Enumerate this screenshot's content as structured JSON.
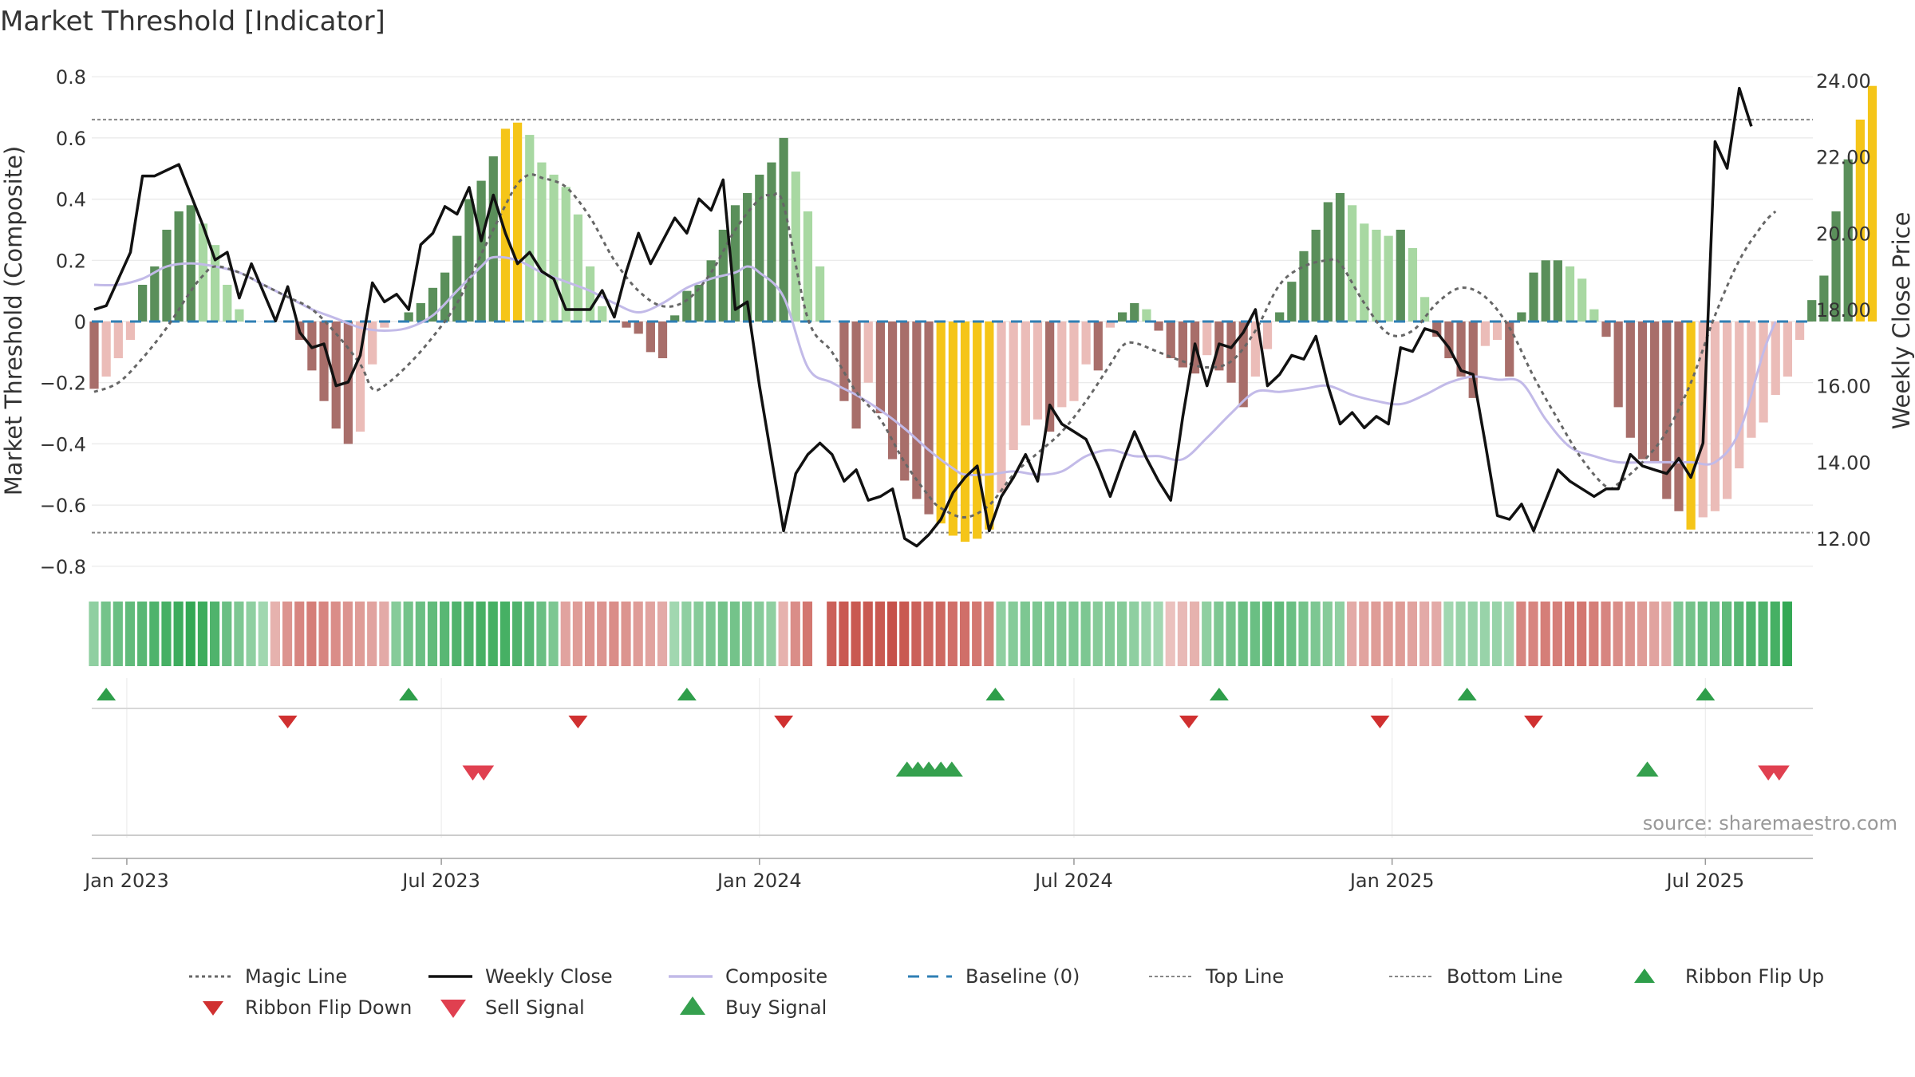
{
  "chart_data": {
    "type": "bar",
    "title": "Market Threshold [Indicator]",
    "ylabel": "Market Threshold (Composite)",
    "y2label": "Weekly Close Price",
    "ylim": [
      -0.85,
      0.85
    ],
    "y2lim": [
      11.25,
      24.25
    ],
    "y_ticks": [
      "0.8",
      "0.6",
      "0.4",
      "0.2",
      "0",
      "−0.2",
      "−0.4",
      "−0.6",
      "−0.8"
    ],
    "y_tick_values": [
      0.8,
      0.6,
      0.4,
      0.2,
      0,
      -0.2,
      -0.4,
      -0.6,
      -0.8
    ],
    "y2_ticks": [
      "24.00",
      "22.00",
      "20.00",
      "18.00",
      "16.00",
      "14.00",
      "12.00"
    ],
    "y2_tick_values": [
      24,
      22,
      20,
      18,
      16,
      14,
      12
    ],
    "x_ticks": [
      "Jan 2023",
      "Jul 2023",
      "Jan 2024",
      "Jul 2024",
      "Jan 2025",
      "Jul 2025"
    ],
    "x_tick_weeks": [
      2.7,
      28.7,
      55,
      81,
      107.3,
      133.2
    ],
    "top_line": 0.66,
    "bottom_line": -0.69,
    "composite_anchors": [
      [
        0,
        0.12
      ],
      [
        2,
        0.12
      ],
      [
        4,
        0.14
      ],
      [
        6,
        0.18
      ],
      [
        8,
        0.19
      ],
      [
        10,
        0.18
      ],
      [
        12,
        0.16
      ],
      [
        14,
        0.12
      ],
      [
        16,
        0.08
      ],
      [
        18,
        0.04
      ],
      [
        20,
        0.01
      ],
      [
        22,
        -0.02
      ],
      [
        24,
        -0.03
      ],
      [
        26,
        -0.02
      ],
      [
        28,
        0.02
      ],
      [
        30,
        0.1
      ],
      [
        32,
        0.18
      ],
      [
        33,
        0.21
      ],
      [
        35,
        0.2
      ],
      [
        37,
        0.16
      ],
      [
        39,
        0.13
      ],
      [
        41,
        0.1
      ],
      [
        43,
        0.06
      ],
      [
        45,
        0.03
      ],
      [
        47,
        0.06
      ],
      [
        49,
        0.11
      ],
      [
        51,
        0.14
      ],
      [
        53,
        0.16
      ],
      [
        54,
        0.18
      ],
      [
        55,
        0.16
      ],
      [
        57,
        0.08
      ],
      [
        59,
        -0.15
      ],
      [
        61,
        -0.2
      ],
      [
        63,
        -0.24
      ],
      [
        65,
        -0.29
      ],
      [
        67,
        -0.35
      ],
      [
        69,
        -0.42
      ],
      [
        71,
        -0.48
      ],
      [
        72,
        -0.5
      ],
      [
        74,
        -0.5
      ],
      [
        76,
        -0.49
      ],
      [
        78,
        -0.5
      ],
      [
        80,
        -0.49
      ],
      [
        82,
        -0.44
      ],
      [
        84,
        -0.42
      ],
      [
        86,
        -0.44
      ],
      [
        88,
        -0.44
      ],
      [
        90,
        -0.45
      ],
      [
        92,
        -0.38
      ],
      [
        94,
        -0.3
      ],
      [
        96,
        -0.23
      ],
      [
        98,
        -0.23
      ],
      [
        100,
        -0.22
      ],
      [
        102,
        -0.21
      ],
      [
        104,
        -0.24
      ],
      [
        106,
        -0.26
      ],
      [
        108,
        -0.27
      ],
      [
        110,
        -0.24
      ],
      [
        112,
        -0.2
      ],
      [
        114,
        -0.18
      ],
      [
        116,
        -0.19
      ],
      [
        118,
        -0.2
      ],
      [
        120,
        -0.32
      ],
      [
        122,
        -0.41
      ],
      [
        124,
        -0.44
      ],
      [
        126,
        -0.46
      ],
      [
        128,
        -0.46
      ],
      [
        130,
        -0.46
      ],
      [
        132,
        -0.46
      ],
      [
        134,
        -0.46
      ],
      [
        136,
        -0.36
      ],
      [
        138,
        -0.1
      ],
      [
        139,
        0.0
      ]
    ],
    "magic_anchors": [
      [
        0,
        -0.23
      ],
      [
        2,
        -0.2
      ],
      [
        4,
        -0.12
      ],
      [
        6,
        -0.02
      ],
      [
        8,
        0.1
      ],
      [
        9,
        0.15
      ],
      [
        10,
        0.18
      ],
      [
        12,
        0.16
      ],
      [
        14,
        0.12
      ],
      [
        16,
        0.08
      ],
      [
        18,
        0.04
      ],
      [
        20,
        -0.04
      ],
      [
        22,
        -0.14
      ],
      [
        23,
        -0.22
      ],
      [
        24,
        -0.21
      ],
      [
        26,
        -0.14
      ],
      [
        28,
        -0.05
      ],
      [
        30,
        0.06
      ],
      [
        32,
        0.22
      ],
      [
        34,
        0.38
      ],
      [
        35,
        0.45
      ],
      [
        36,
        0.48
      ],
      [
        37,
        0.47
      ],
      [
        39,
        0.44
      ],
      [
        41,
        0.34
      ],
      [
        43,
        0.2
      ],
      [
        45,
        0.1
      ],
      [
        47,
        0.05
      ],
      [
        49,
        0.07
      ],
      [
        51,
        0.16
      ],
      [
        53,
        0.3
      ],
      [
        55,
        0.4
      ],
      [
        56,
        0.41
      ],
      [
        57,
        0.38
      ],
      [
        59,
        0.01
      ],
      [
        61,
        -0.1
      ],
      [
        63,
        -0.23
      ],
      [
        65,
        -0.32
      ],
      [
        67,
        -0.46
      ],
      [
        69,
        -0.57
      ],
      [
        70,
        -0.61
      ],
      [
        72,
        -0.64
      ],
      [
        74,
        -0.6
      ],
      [
        76,
        -0.5
      ],
      [
        78,
        -0.43
      ],
      [
        80,
        -0.36
      ],
      [
        82,
        -0.26
      ],
      [
        84,
        -0.14
      ],
      [
        85,
        -0.08
      ],
      [
        86,
        -0.07
      ],
      [
        88,
        -0.1
      ],
      [
        90,
        -0.13
      ],
      [
        92,
        -0.15
      ],
      [
        94,
        -0.13
      ],
      [
        96,
        -0.03
      ],
      [
        98,
        0.12
      ],
      [
        100,
        0.18
      ],
      [
        102,
        0.2
      ],
      [
        103,
        0.19
      ],
      [
        105,
        0.06
      ],
      [
        107,
        -0.04
      ],
      [
        109,
        -0.03
      ],
      [
        111,
        0.06
      ],
      [
        113,
        0.11
      ],
      [
        115,
        0.08
      ],
      [
        117,
        -0.02
      ],
      [
        119,
        -0.18
      ],
      [
        121,
        -0.32
      ],
      [
        123,
        -0.45
      ],
      [
        125,
        -0.54
      ],
      [
        126,
        -0.53
      ],
      [
        128,
        -0.46
      ],
      [
        130,
        -0.36
      ],
      [
        132,
        -0.2
      ],
      [
        134,
        0.02
      ],
      [
        136,
        0.2
      ],
      [
        138,
        0.32
      ],
      [
        139,
        0.36
      ]
    ],
    "close_anchors": [
      [
        0,
        18.0
      ],
      [
        1,
        18.1
      ],
      [
        3,
        19.5
      ],
      [
        4,
        21.5
      ],
      [
        5,
        21.5
      ],
      [
        7,
        21.8
      ],
      [
        9,
        20.2
      ],
      [
        10,
        19.3
      ],
      [
        11,
        19.5
      ],
      [
        12,
        18.3
      ],
      [
        13,
        19.2
      ],
      [
        15,
        17.7
      ],
      [
        16,
        18.6
      ],
      [
        17,
        17.4
      ],
      [
        18,
        17.0
      ],
      [
        19,
        17.1
      ],
      [
        20,
        16.0
      ],
      [
        21,
        16.1
      ],
      [
        22,
        16.8
      ],
      [
        23,
        18.7
      ],
      [
        24,
        18.2
      ],
      [
        25,
        18.4
      ],
      [
        26,
        18.0
      ],
      [
        27,
        19.7
      ],
      [
        28,
        20.0
      ],
      [
        29,
        20.7
      ],
      [
        30,
        20.5
      ],
      [
        31,
        21.2
      ],
      [
        32,
        19.8
      ],
      [
        33,
        21.0
      ],
      [
        34,
        20.0
      ],
      [
        35,
        19.2
      ],
      [
        36,
        19.5
      ],
      [
        37,
        19.0
      ],
      [
        38,
        18.8
      ],
      [
        39,
        18.0
      ],
      [
        41,
        18.0
      ],
      [
        42,
        18.5
      ],
      [
        43,
        17.8
      ],
      [
        44,
        19.0
      ],
      [
        45,
        20.0
      ],
      [
        46,
        19.2
      ],
      [
        47,
        19.8
      ],
      [
        48,
        20.4
      ],
      [
        49,
        20.0
      ],
      [
        50,
        20.9
      ],
      [
        51,
        20.6
      ],
      [
        52,
        21.4
      ],
      [
        53,
        18.0
      ],
      [
        54,
        18.2
      ],
      [
        55,
        16.0
      ],
      [
        57,
        12.2
      ],
      [
        58,
        13.7
      ],
      [
        59,
        14.2
      ],
      [
        60,
        14.5
      ],
      [
        61,
        14.2
      ],
      [
        62,
        13.5
      ],
      [
        63,
        13.8
      ],
      [
        64,
        13.0
      ],
      [
        65,
        13.1
      ],
      [
        66,
        13.3
      ],
      [
        67,
        12.0
      ],
      [
        68,
        11.8
      ],
      [
        69,
        12.1
      ],
      [
        70,
        12.5
      ],
      [
        71,
        13.2
      ],
      [
        72,
        13.6
      ],
      [
        73,
        13.9
      ],
      [
        74,
        12.2
      ],
      [
        75,
        13.1
      ],
      [
        76,
        13.6
      ],
      [
        77,
        14.2
      ],
      [
        78,
        13.5
      ],
      [
        79,
        15.5
      ],
      [
        80,
        15.0
      ],
      [
        81,
        14.8
      ],
      [
        82,
        14.6
      ],
      [
        83,
        13.9
      ],
      [
        84,
        13.1
      ],
      [
        85,
        14.0
      ],
      [
        86,
        14.8
      ],
      [
        87,
        14.1
      ],
      [
        88,
        13.5
      ],
      [
        89,
        13.0
      ],
      [
        90,
        15.2
      ],
      [
        91,
        17.1
      ],
      [
        92,
        16.0
      ],
      [
        93,
        17.1
      ],
      [
        94,
        17.0
      ],
      [
        95,
        17.4
      ],
      [
        96,
        18.0
      ],
      [
        97,
        16.0
      ],
      [
        98,
        16.3
      ],
      [
        99,
        16.8
      ],
      [
        100,
        16.7
      ],
      [
        101,
        17.3
      ],
      [
        102,
        16.0
      ],
      [
        103,
        15.0
      ],
      [
        104,
        15.3
      ],
      [
        105,
        14.9
      ],
      [
        106,
        15.2
      ],
      [
        107,
        15.0
      ],
      [
        108,
        17.0
      ],
      [
        109,
        16.9
      ],
      [
        110,
        17.5
      ],
      [
        111,
        17.4
      ],
      [
        112,
        17.0
      ],
      [
        113,
        16.4
      ],
      [
        114,
        16.3
      ],
      [
        115,
        14.5
      ],
      [
        116,
        12.6
      ],
      [
        117,
        12.5
      ],
      [
        118,
        12.9
      ],
      [
        119,
        12.2
      ],
      [
        120,
        13.0
      ],
      [
        121,
        13.8
      ],
      [
        122,
        13.5
      ],
      [
        123,
        13.3
      ],
      [
        124,
        13.1
      ],
      [
        125,
        13.3
      ],
      [
        126,
        13.3
      ],
      [
        127,
        14.2
      ],
      [
        128,
        13.9
      ],
      [
        129,
        13.8
      ],
      [
        130,
        13.7
      ],
      [
        131,
        14.1
      ],
      [
        132,
        13.6
      ],
      [
        133,
        14.5
      ],
      [
        134,
        22.4
      ],
      [
        135,
        21.7
      ],
      [
        136,
        23.8
      ],
      [
        137,
        22.8
      ]
    ],
    "histogram": [
      -0.22,
      -0.18,
      -0.12,
      -0.06,
      0.12,
      0.18,
      0.3,
      0.36,
      0.38,
      0.32,
      0.25,
      0.12,
      0.04,
      0.0,
      0.0,
      0.0,
      0.0,
      -0.06,
      -0.16,
      -0.26,
      -0.35,
      -0.4,
      -0.36,
      -0.14,
      -0.02,
      0.0,
      0.03,
      0.06,
      0.11,
      0.16,
      0.28,
      0.4,
      0.46,
      0.54,
      0.63,
      0.65,
      0.61,
      0.52,
      0.48,
      0.44,
      0.35,
      0.18,
      0.05,
      0.0,
      -0.02,
      -0.04,
      -0.1,
      -0.12,
      0.02,
      0.1,
      0.12,
      0.2,
      0.3,
      0.38,
      0.42,
      0.48,
      0.52,
      0.6,
      0.49,
      0.36,
      0.18,
      0.0,
      -0.26,
      -0.35,
      -0.2,
      -0.3,
      -0.45,
      -0.52,
      -0.58,
      -0.63,
      -0.66,
      -0.7,
      -0.72,
      -0.71,
      -0.68,
      -0.56,
      -0.42,
      -0.34,
      -0.32,
      -0.36,
      -0.28,
      -0.26,
      -0.14,
      -0.16,
      -0.02,
      0.03,
      0.06,
      0.04,
      -0.03,
      -0.12,
      -0.15,
      -0.17,
      -0.11,
      -0.16,
      -0.2,
      -0.28,
      -0.18,
      -0.09,
      0.03,
      0.13,
      0.23,
      0.3,
      0.39,
      0.42,
      0.38,
      0.32,
      0.3,
      0.28,
      0.3,
      0.24,
      0.08,
      -0.05,
      -0.12,
      -0.18,
      -0.25,
      -0.08,
      -0.06,
      -0.18,
      0.03,
      0.16,
      0.2,
      0.2,
      0.18,
      0.14,
      0.04,
      -0.05,
      -0.28,
      -0.38,
      -0.45,
      -0.46,
      -0.58,
      -0.62,
      -0.68,
      -0.64,
      -0.62,
      -0.58,
      -0.48,
      -0.38,
      -0.33,
      -0.24,
      -0.18,
      -0.06,
      0.07,
      0.15,
      0.36,
      0.53,
      0.66,
      0.77
    ],
    "ribbon": [
      0.4,
      0.55,
      0.6,
      0.65,
      0.7,
      0.75,
      0.8,
      0.85,
      0.9,
      0.85,
      0.75,
      0.6,
      0.5,
      0.4,
      0.3,
      -0.3,
      -0.5,
      -0.6,
      -0.65,
      -0.6,
      -0.55,
      -0.5,
      -0.45,
      -0.4,
      -0.35,
      0.45,
      0.55,
      0.6,
      0.65,
      0.7,
      0.75,
      0.75,
      0.8,
      0.8,
      0.8,
      0.75,
      0.7,
      0.6,
      0.5,
      -0.4,
      -0.45,
      -0.5,
      -0.5,
      -0.55,
      -0.5,
      -0.45,
      -0.4,
      -0.35,
      0.3,
      0.4,
      0.45,
      0.5,
      0.55,
      0.55,
      0.5,
      0.45,
      0.4,
      -0.3,
      -0.55,
      -0.7,
      0.0,
      -0.85,
      -0.9,
      -0.9,
      -0.9,
      -0.9,
      -0.95,
      -0.9,
      -0.85,
      -0.8,
      -0.8,
      -0.75,
      -0.75,
      -0.7,
      -0.65,
      0.4,
      0.45,
      0.5,
      0.5,
      0.5,
      0.5,
      0.5,
      0.5,
      0.45,
      0.45,
      0.45,
      0.4,
      0.35,
      0.3,
      -0.2,
      -0.25,
      -0.3,
      0.4,
      0.5,
      0.55,
      0.6,
      0.6,
      0.65,
      0.65,
      0.6,
      0.55,
      0.5,
      0.45,
      0.4,
      -0.35,
      -0.4,
      -0.45,
      -0.45,
      -0.45,
      -0.4,
      -0.35,
      -0.35,
      0.3,
      0.35,
      0.35,
      0.35,
      0.35,
      0.3,
      -0.6,
      -0.6,
      -0.65,
      -0.65,
      -0.7,
      -0.7,
      -0.65,
      -0.6,
      -0.55,
      -0.5,
      -0.45,
      -0.4,
      -0.35,
      0.5,
      0.55,
      0.6,
      0.6,
      0.65,
      0.7,
      0.75,
      0.75,
      0.8,
      0.9
    ],
    "ribbon_flip_up": [
      1,
      26,
      49,
      74.5,
      93,
      113.5,
      133.2
    ],
    "ribbon_flip_down": [
      16,
      40,
      57,
      90.5,
      106.3,
      119
    ],
    "sell_signals": [
      31.3,
      32.2,
      138.4,
      139.3
    ],
    "buy_signals": [
      67.2,
      68.1,
      69.0,
      70.0,
      70.9,
      128.4
    ],
    "legend": [
      "Magic Line",
      "Weekly Close",
      "Composite",
      "Baseline (0)",
      "Top Line",
      "Bottom Line",
      "Ribbon Flip Up",
      "Ribbon Flip Down",
      "Sell Signal",
      "Buy Signal"
    ],
    "source": "source: sharemaestro.com",
    "colors": {
      "pos_strong": "#5a8f5a",
      "pos_light": "#a8d8a2",
      "neg_strong": "#a86e6a",
      "neg_light": "#ebbcb8",
      "extreme": "#f5c518",
      "close": "#111111",
      "composite": "#c2bae8",
      "magic": "#666666",
      "baseline": "#2f7fb4",
      "threshold": "#888888",
      "flip_up": "#2e9e4a",
      "flip_down": "#d03030",
      "sell": "#e04050",
      "buy": "#35a04e",
      "grid": "#e8e8e8"
    }
  }
}
